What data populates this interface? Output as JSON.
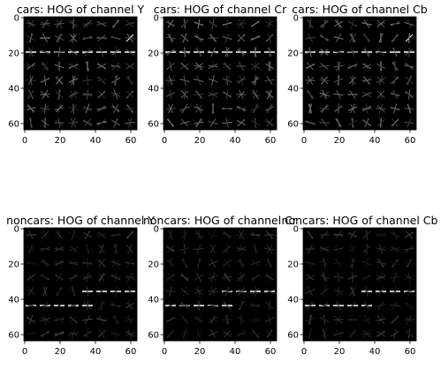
{
  "figure": {
    "panels": [
      {
        "title": "cars: HOG of channel Y",
        "pattern": "car"
      },
      {
        "title": "cars: HOG of channel Cr",
        "pattern": "car"
      },
      {
        "title": "cars: HOG of channel Cb",
        "pattern": "car"
      },
      {
        "title": "noncars: HOG of channel Y",
        "pattern": "noncar"
      },
      {
        "title": "noncars: HOG of channel Cr",
        "pattern": "noncar"
      },
      {
        "title": "noncars: HOG of channel Cb",
        "pattern": "noncar"
      }
    ],
    "x_ticks": [
      "0",
      "20",
      "40",
      "60"
    ],
    "y_ticks": [
      "0",
      "20",
      "40",
      "60"
    ],
    "image_extent": [
      0,
      64
    ],
    "background_color": "#000000",
    "foreground_color": "#ffffff"
  }
}
